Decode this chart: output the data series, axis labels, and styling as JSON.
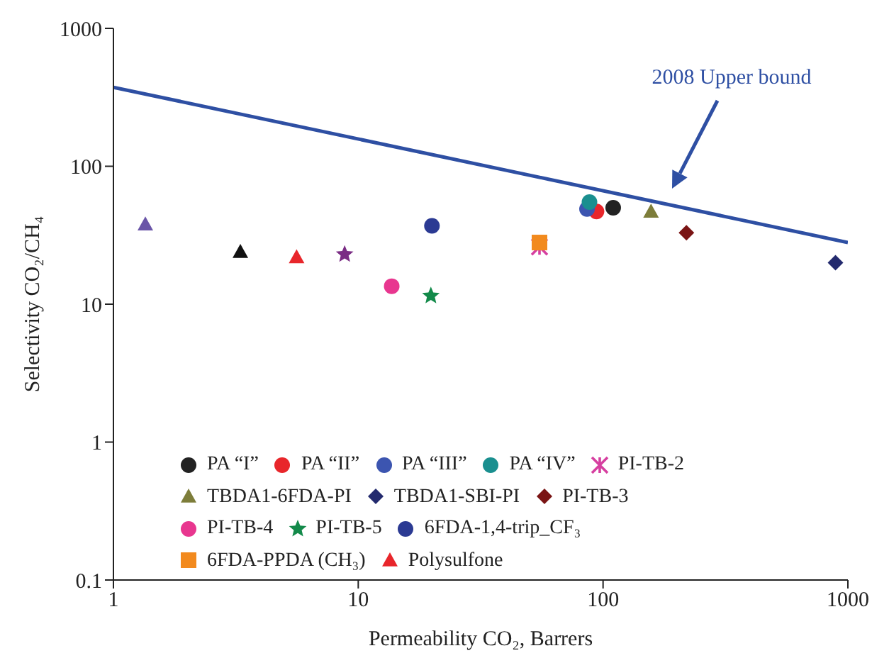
{
  "chart_data": {
    "type": "scatter",
    "xlabel": "Permeability CO₂, Barrers",
    "ylabel": "Selectivity CO₂/CH₄",
    "log": "xy",
    "xlim": [
      1,
      1000
    ],
    "ylim": [
      0.1,
      1000
    ],
    "xticks": [
      1,
      10,
      100,
      1000
    ],
    "yticks": [
      0.1,
      1,
      10,
      100,
      1000
    ],
    "grid": false,
    "legend": "bottom left",
    "annotations": [
      "2008 Upper bound"
    ],
    "series": [
      {
        "type": "line",
        "color": "#2e4fa3",
        "x": [
          1,
          1000
        ],
        "values": [
          374,
          28
        ],
        "marker": "none"
      },
      {
        "name": "PA “I”",
        "color": "#222222",
        "marker": "circle",
        "x": [
          110
        ],
        "values": [
          50
        ]
      },
      {
        "name": "PA “II”",
        "color": "#e8262b",
        "marker": "circle",
        "x": [
          94
        ],
        "values": [
          47
        ]
      },
      {
        "name": "PA “III”",
        "color": "#3c55b0",
        "marker": "circle",
        "x": [
          86
        ],
        "values": [
          49
        ]
      },
      {
        "name": "PA “IV”",
        "color": "#1a8f8f",
        "marker": "circle",
        "x": [
          88
        ],
        "values": [
          55
        ]
      },
      {
        "name": "PI-TB-2",
        "color": "#d63fa0",
        "marker": "cross",
        "x": [
          55
        ],
        "values": [
          26
        ]
      },
      {
        "name": "TBDA1-6FDA-PI",
        "color": "#7d7d3a",
        "marker": "triangle",
        "x": [
          157
        ],
        "values": [
          47
        ]
      },
      {
        "name": "TBDA1-SBI-PI",
        "color": "#232a6e",
        "marker": "diamond",
        "x": [
          890
        ],
        "values": [
          20
        ]
      },
      {
        "name": "PI-TB-3",
        "color": "#7a1414",
        "marker": "diamond",
        "x": [
          219
        ],
        "values": [
          33
        ]
      },
      {
        "name": "PI-TB-4",
        "color": "#e8368f",
        "marker": "circle",
        "x": [
          13.7
        ],
        "values": [
          13.5
        ]
      },
      {
        "name": "PI-TB-5",
        "color": "#138a4a",
        "marker": "star",
        "x": [
          19.8
        ],
        "values": [
          11.5
        ]
      },
      {
        "name": "6FDA-1,4-trip_CF₃",
        "color": "#2b3a93",
        "marker": "circle",
        "x": [
          20
        ],
        "values": [
          37
        ]
      },
      {
        "name": "6FDA-PPDA (CH₃)",
        "color": "#f28a1e",
        "marker": "square",
        "x": [
          55
        ],
        "values": [
          28
        ]
      },
      {
        "color": "#7a2c84",
        "marker": "star",
        "x": [
          8.8
        ],
        "values": [
          23
        ]
      },
      {
        "color": "#6a55a8",
        "marker": "triangle",
        "x": [
          1.35
        ],
        "values": [
          38
        ]
      },
      {
        "color": "#111111",
        "marker": "triangle",
        "x": [
          3.3
        ],
        "values": [
          24
        ]
      },
      {
        "name": "Polysulfone",
        "color": "#e8262b",
        "marker": "triangle",
        "x": [
          5.6
        ],
        "values": [
          22
        ]
      }
    ]
  }
}
